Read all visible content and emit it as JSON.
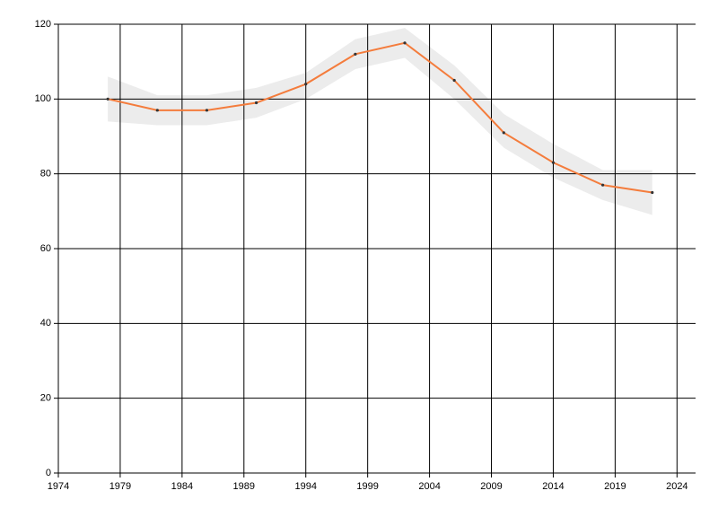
{
  "chart_data": {
    "type": "line",
    "x": [
      1978,
      1982,
      1986,
      1990,
      1994,
      1998,
      2002,
      2006,
      2010,
      2014,
      2018,
      2022
    ],
    "series": [
      {
        "color": "#f47c3c",
        "values": [
          100,
          97,
          97,
          99,
          104,
          112,
          115,
          105,
          91,
          83,
          77,
          75
        ]
      }
    ],
    "band": {
      "color": "#ececec",
      "lower": [
        94,
        93,
        93,
        95,
        100,
        108,
        111,
        100,
        87,
        79,
        73,
        69
      ],
      "upper": [
        106,
        101,
        101,
        103,
        107,
        116,
        119,
        109,
        96,
        88,
        81,
        81
      ]
    },
    "xlim": [
      1974,
      2025.5
    ],
    "xticks": [
      1974,
      1979,
      1984,
      1989,
      1994,
      1999,
      2004,
      2009,
      2014,
      2019,
      2024
    ],
    "ylim": [
      0,
      120
    ],
    "yticks": [
      0,
      20,
      40,
      60,
      80,
      100,
      120
    ],
    "grid": true
  }
}
